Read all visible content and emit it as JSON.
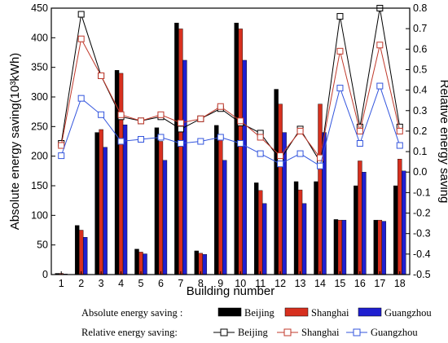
{
  "chart_data": {
    "type": "bar",
    "xlabel": "Building number",
    "ylabel": "Absolute energy saving(10³kWh)",
    "ylabel_right": "Relative energy saving",
    "ylim": [
      0,
      450
    ],
    "ylim_right": [
      -0.5,
      0.8
    ],
    "grid": false,
    "legend_position": "bottom",
    "categories": [
      "1",
      "2",
      "3",
      "4",
      "5",
      "6",
      "7",
      "8",
      "9",
      "10",
      "11",
      "12",
      "13",
      "14",
      "15",
      "16",
      "17",
      "18"
    ],
    "y_ticks": [
      "0",
      "50",
      "100",
      "150",
      "200",
      "250",
      "300",
      "350",
      "400",
      "450"
    ],
    "y_right_ticks": [
      "-0.5",
      "-0.4",
      "-0.3",
      "-0.2",
      "-0.1",
      "0.0",
      "0.1",
      "0.2",
      "0.3",
      "0.4",
      "0.5",
      "0.6",
      "0.7",
      "0.8"
    ],
    "legend": {
      "bar_title": "Absolute energy saving :",
      "line_title": "Relative energy saving:"
    },
    "bar_series": [
      {
        "name": "Beijing",
        "color": "#000000",
        "values": [
          2,
          83,
          240,
          345,
          43,
          248,
          425,
          40,
          252,
          425,
          155,
          313,
          157,
          157,
          93,
          150,
          92,
          150
        ]
      },
      {
        "name": "Shanghai",
        "color": "#d7301f",
        "values": [
          2,
          75,
          245,
          340,
          38,
          225,
          415,
          36,
          228,
          415,
          142,
          288,
          143,
          288,
          92,
          192,
          92,
          195
        ]
      },
      {
        "name": "Guangzhou",
        "color": "#1f1fd0",
        "values": [
          1,
          63,
          215,
          253,
          35,
          193,
          362,
          34,
          193,
          362,
          120,
          240,
          120,
          240,
          92,
          173,
          90,
          175
        ]
      }
    ],
    "line_series": [
      {
        "name": "Beijing",
        "color": "#000000",
        "values": [
          0.14,
          0.77,
          0.47,
          0.27,
          0.25,
          0.27,
          0.21,
          0.26,
          0.31,
          0.24,
          0.19,
          0.06,
          0.21,
          0.05,
          0.76,
          0.22,
          0.8,
          0.22
        ]
      },
      {
        "name": "Shanghai",
        "color": "#c0392b",
        "values": [
          0.13,
          0.65,
          0.47,
          0.28,
          0.25,
          0.28,
          0.24,
          0.26,
          0.32,
          0.25,
          0.17,
          0.08,
          0.2,
          0.07,
          0.59,
          0.2,
          0.62,
          0.2
        ]
      },
      {
        "name": "Guangzhou",
        "color": "#3355dd",
        "values": [
          0.08,
          0.36,
          0.28,
          0.15,
          0.16,
          0.17,
          0.14,
          0.15,
          0.17,
          0.14,
          0.09,
          0.04,
          0.09,
          0.03,
          0.41,
          0.14,
          0.42,
          0.13
        ]
      }
    ]
  }
}
